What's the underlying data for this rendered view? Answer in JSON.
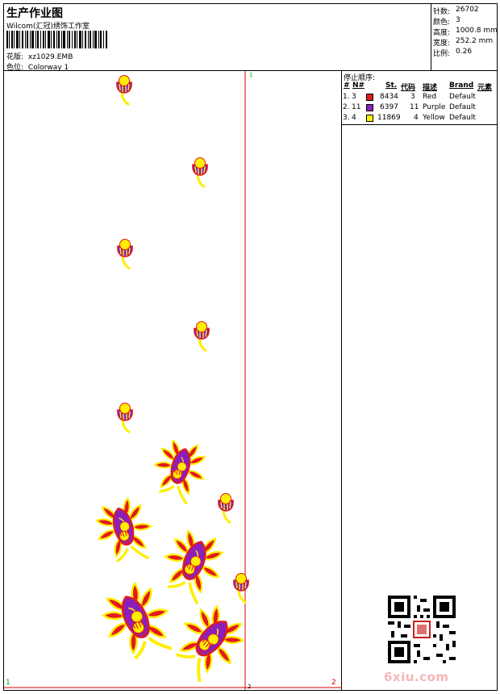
{
  "header": {
    "title": "生产作业图",
    "company": "Wilcom(汇冠)绣饰工作室",
    "design_label": "花版:",
    "design_value": "xz1029.EMB",
    "colorway_label": "色位:",
    "colorway_value": "Colorway 1"
  },
  "stats": [
    {
      "label": "针数:",
      "value": "26702"
    },
    {
      "label": "颜色:",
      "value": "3"
    },
    {
      "label": "高度:",
      "value": "1000.8 mm"
    },
    {
      "label": "宽度:",
      "value": "252.2 mm"
    },
    {
      "label": "比例:",
      "value": "0.26"
    }
  ],
  "stop_sequence": {
    "title": "停止顺序:",
    "headers": {
      "num": "#",
      "n": "N#",
      "st": "St.",
      "code": "代码",
      "desc": "描述",
      "brand": "Brand",
      "element": "元素"
    },
    "rows": [
      {
        "num": "1.",
        "n": "3",
        "color": "#e21b1b",
        "st": "8434",
        "code": "3",
        "desc": "Red",
        "brand": "Default"
      },
      {
        "num": "2.",
        "n": "11",
        "color": "#8a1fbd",
        "st": "6397",
        "code": "11",
        "desc": "Purple",
        "brand": "Default"
      },
      {
        "num": "3.",
        "n": "4",
        "color": "#ffee00",
        "st": "11869",
        "code": "4",
        "desc": "Yellow",
        "brand": "Default"
      }
    ]
  },
  "canvas_marks": {
    "top_mark": "1",
    "bottom_left": "1",
    "bottom_right": "2",
    "bottom_mid": "2"
  },
  "watermark": "6xiu.com",
  "colors": {
    "red": "#e21b1b",
    "purple": "#8a1fbd",
    "yellow": "#ffee00",
    "guide": "#e00000"
  }
}
